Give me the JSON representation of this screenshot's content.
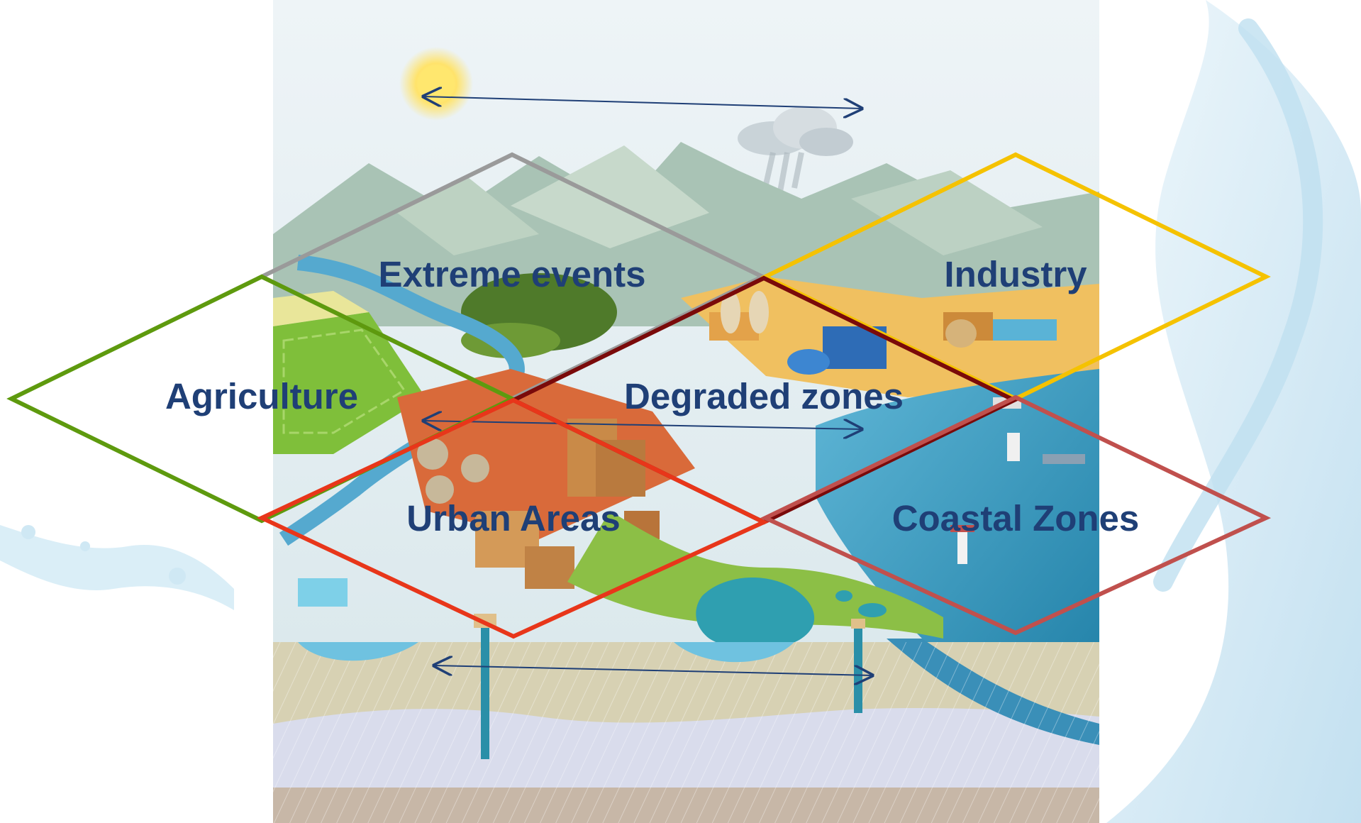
{
  "colors": {
    "label_text": "#1f3f76",
    "arrow": "#1f3f76",
    "extreme_events": "#9a9a9a",
    "industry": "#f5c200",
    "agriculture": "#5e9a0e",
    "degraded_zones": "#7a0a0a",
    "urban_areas": "#e8361a",
    "coastal_zones": "#c0504d"
  },
  "zones": [
    {
      "id": "extreme-events",
      "label": "Extreme events",
      "color_key": "extreme_events"
    },
    {
      "id": "industry",
      "label": "Industry",
      "color_key": "industry"
    },
    {
      "id": "agriculture",
      "label": "Agriculture",
      "color_key": "agriculture"
    },
    {
      "id": "degraded-zones",
      "label": "Degraded zones",
      "color_key": "degraded_zones"
    },
    {
      "id": "urban-areas",
      "label": "Urban Areas",
      "color_key": "urban_areas"
    },
    {
      "id": "coastal-zones",
      "label": "Coastal Zones",
      "color_key": "coastal_zones"
    }
  ],
  "arrows": [
    {
      "id": "atmosphere-arrow",
      "direction": "both"
    },
    {
      "id": "surface-arrow",
      "direction": "both"
    },
    {
      "id": "groundwater-arrow",
      "direction": "both"
    }
  ],
  "illustration": {
    "scene": "water-cycle landscape",
    "elements": [
      "sun-icon",
      "cloud-icon",
      "mountains",
      "river",
      "fields",
      "factories",
      "city",
      "harbor",
      "lake",
      "well",
      "aquifer"
    ]
  }
}
